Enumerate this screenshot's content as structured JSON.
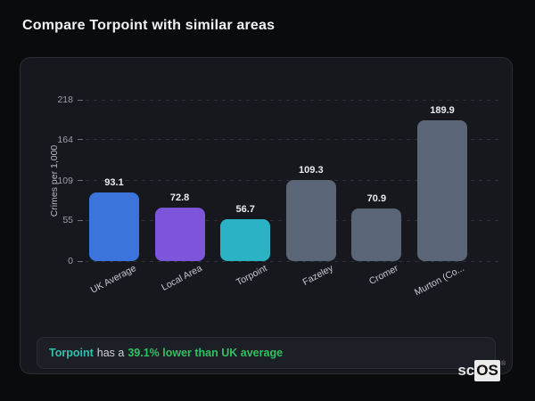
{
  "page": {
    "title": "Compare Torpoint with similar areas"
  },
  "chart_data": {
    "type": "bar",
    "categories": [
      "UK Average",
      "Local Area",
      "Torpoint",
      "Fazeley",
      "Cromer",
      "Murton (Co..."
    ],
    "values": [
      93.1,
      72.8,
      56.7,
      109.3,
      70.9,
      189.9
    ],
    "value_labels": [
      "93.1",
      "72.8",
      "56.7",
      "109.3",
      "70.9",
      "189.9"
    ],
    "bar_colors": [
      "#3b74db",
      "#7d55da",
      "#2bb3c5",
      "#5a6578",
      "#5a6578",
      "#5a6578"
    ],
    "title": "",
    "xlabel": "",
    "ylabel": "Crimes per 1,000",
    "ylim": [
      0,
      218
    ],
    "yticks": [
      0,
      55,
      109,
      164,
      218
    ],
    "grid": "dashed-horizontal",
    "legend": "none"
  },
  "note": {
    "area": "Torpoint",
    "middle": "has a",
    "highlight": "39.1% lower than UK average",
    "area_color": "#2dc0ad",
    "highlight_color": "#2fc162"
  },
  "logo": {
    "prefix": "sc",
    "suffix": "OS",
    "reg": "®"
  },
  "colors": {
    "page_bg": "#0a0b0d",
    "card_bg": "#16181d",
    "card_border": "#2a2d33",
    "note_bg": "#1c1f25",
    "grid_line": "#2d3138",
    "tick_text": "#9aa0a8",
    "value_text": "#e9ebee",
    "xlabel_text": "#c6cad0"
  }
}
